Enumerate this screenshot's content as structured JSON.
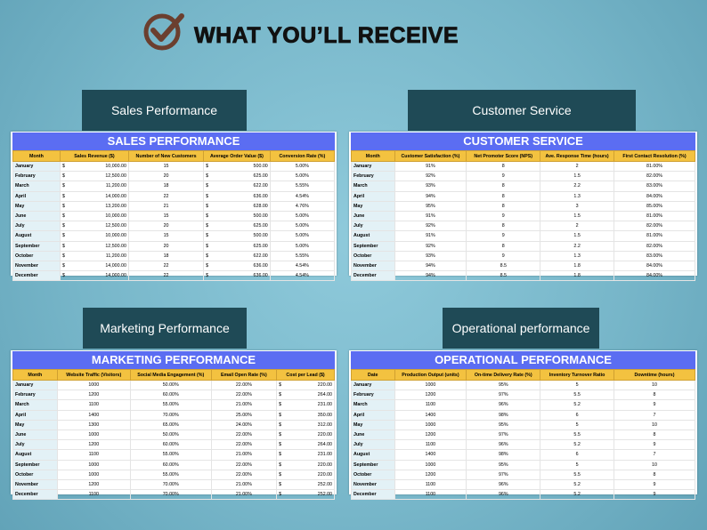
{
  "header": {
    "title": "WHAT YOU’LL RECEIVE"
  },
  "panels": [
    {
      "label": "Sales Performance",
      "table": {
        "title": "SALES PERFORMANCE",
        "columns": [
          "Month",
          "Sales Revenue ($)",
          "Number of New Customers",
          "Average Order Value ($)",
          "Conversion Rate (%)"
        ],
        "rows": [
          [
            "January",
            "$",
            "10,000.00",
            "15",
            "$",
            "500.00",
            "5.00%"
          ],
          [
            "February",
            "$",
            "12,500.00",
            "20",
            "$",
            "625.00",
            "5.00%"
          ],
          [
            "March",
            "$",
            "11,200.00",
            "18",
            "$",
            "622.00",
            "5.55%"
          ],
          [
            "April",
            "$",
            "14,000.00",
            "22",
            "$",
            "636.00",
            "4.54%"
          ],
          [
            "May",
            "$",
            "13,200.00",
            "21",
            "$",
            "628.00",
            "4.76%"
          ],
          [
            "June",
            "$",
            "10,000.00",
            "15",
            "$",
            "500.00",
            "5.00%"
          ],
          [
            "July",
            "$",
            "12,500.00",
            "20",
            "$",
            "625.00",
            "5.00%"
          ],
          [
            "August",
            "$",
            "10,000.00",
            "15",
            "$",
            "500.00",
            "5.00%"
          ],
          [
            "September",
            "$",
            "12,500.00",
            "20",
            "$",
            "625.00",
            "5.00%"
          ],
          [
            "October",
            "$",
            "11,200.00",
            "18",
            "$",
            "622.00",
            "5.55%"
          ],
          [
            "November",
            "$",
            "14,000.00",
            "22",
            "$",
            "636.00",
            "4.54%"
          ],
          [
            "December",
            "$",
            "14,000.00",
            "22",
            "$",
            "636.00",
            "4.54%"
          ]
        ]
      }
    },
    {
      "label": "Customer Service",
      "table": {
        "title": "CUSTOMER SERVICE",
        "columns": [
          "Month",
          "Customer Satisfaction  (%)",
          "Net Promoter Score (NPS)",
          "Ave. Response Time (hours)",
          "First Contact Resolution (%)"
        ],
        "rows": [
          [
            "January",
            "91%",
            "8",
            "2",
            "81.00%"
          ],
          [
            "February",
            "92%",
            "9",
            "1.5",
            "82.00%"
          ],
          [
            "March",
            "93%",
            "8",
            "2.2",
            "83.00%"
          ],
          [
            "April",
            "94%",
            "8",
            "1.3",
            "84.00%"
          ],
          [
            "May",
            "95%",
            "8",
            "3",
            "85.00%"
          ],
          [
            "June",
            "91%",
            "9",
            "1.5",
            "81.00%"
          ],
          [
            "July",
            "92%",
            "8",
            "2",
            "82.00%"
          ],
          [
            "August",
            "91%",
            "9",
            "1.5",
            "81.00%"
          ],
          [
            "September",
            "92%",
            "8",
            "2.2",
            "82.00%"
          ],
          [
            "October",
            "93%",
            "9",
            "1.3",
            "83.00%"
          ],
          [
            "November",
            "94%",
            "8.5",
            "1.8",
            "84.00%"
          ],
          [
            "December",
            "94%",
            "8.5",
            "1.8",
            "84.00%"
          ]
        ]
      }
    },
    {
      "label": "Marketing Performance",
      "table": {
        "title": "MARKETING PERFORMANCE",
        "columns": [
          "Month",
          "Website Traffic (Visitors)",
          "Social Media Engagement (%)",
          "Email Open Rate (%)",
          "Cost per Lead ($)"
        ],
        "rows": [
          [
            "January",
            "1000",
            "50.00%",
            "22.00%",
            "$",
            "220.00"
          ],
          [
            "February",
            "1200",
            "60.00%",
            "22.00%",
            "$",
            "264.00"
          ],
          [
            "March",
            "1100",
            "55.00%",
            "21.00%",
            "$",
            "231.00"
          ],
          [
            "April",
            "1400",
            "70.00%",
            "25.00%",
            "$",
            "350.00"
          ],
          [
            "May",
            "1300",
            "65.00%",
            "24.00%",
            "$",
            "312.00"
          ],
          [
            "June",
            "1000",
            "50.00%",
            "22.00%",
            "$",
            "220.00"
          ],
          [
            "July",
            "1200",
            "60.00%",
            "22.00%",
            "$",
            "264.00"
          ],
          [
            "August",
            "1100",
            "55.00%",
            "21.00%",
            "$",
            "231.00"
          ],
          [
            "September",
            "1000",
            "60.00%",
            "22.00%",
            "$",
            "220.00"
          ],
          [
            "October",
            "1000",
            "55.00%",
            "22.00%",
            "$",
            "220.00"
          ],
          [
            "November",
            "1200",
            "70.00%",
            "21.00%",
            "$",
            "252.00"
          ],
          [
            "December",
            "1100",
            "70.00%",
            "21.00%",
            "$",
            "252.00"
          ]
        ]
      }
    },
    {
      "label": "Operational performance",
      "table": {
        "title": "OPERATIONAL PERFORMANCE",
        "columns": [
          "Date",
          "Production Output (units)",
          "On-time Delivery Rate (%)",
          "Inventory Turnover Ratio",
          "Downtime (hours)"
        ],
        "rows": [
          [
            "January",
            "1000",
            "95%",
            "5",
            "10"
          ],
          [
            "February",
            "1200",
            "97%",
            "5.5",
            "8"
          ],
          [
            "March",
            "1100",
            "96%",
            "5.2",
            "9"
          ],
          [
            "April",
            "1400",
            "98%",
            "6",
            "7"
          ],
          [
            "May",
            "1000",
            "95%",
            "5",
            "10"
          ],
          [
            "June",
            "1200",
            "97%",
            "5.5",
            "8"
          ],
          [
            "July",
            "1100",
            "96%",
            "5.2",
            "9"
          ],
          [
            "August",
            "1400",
            "98%",
            "6",
            "7"
          ],
          [
            "September",
            "1000",
            "95%",
            "5",
            "10"
          ],
          [
            "October",
            "1200",
            "97%",
            "5.5",
            "8"
          ],
          [
            "November",
            "1100",
            "96%",
            "5.2",
            "9"
          ],
          [
            "December",
            "1100",
            "96%",
            "5.2",
            "9"
          ]
        ]
      }
    }
  ]
}
